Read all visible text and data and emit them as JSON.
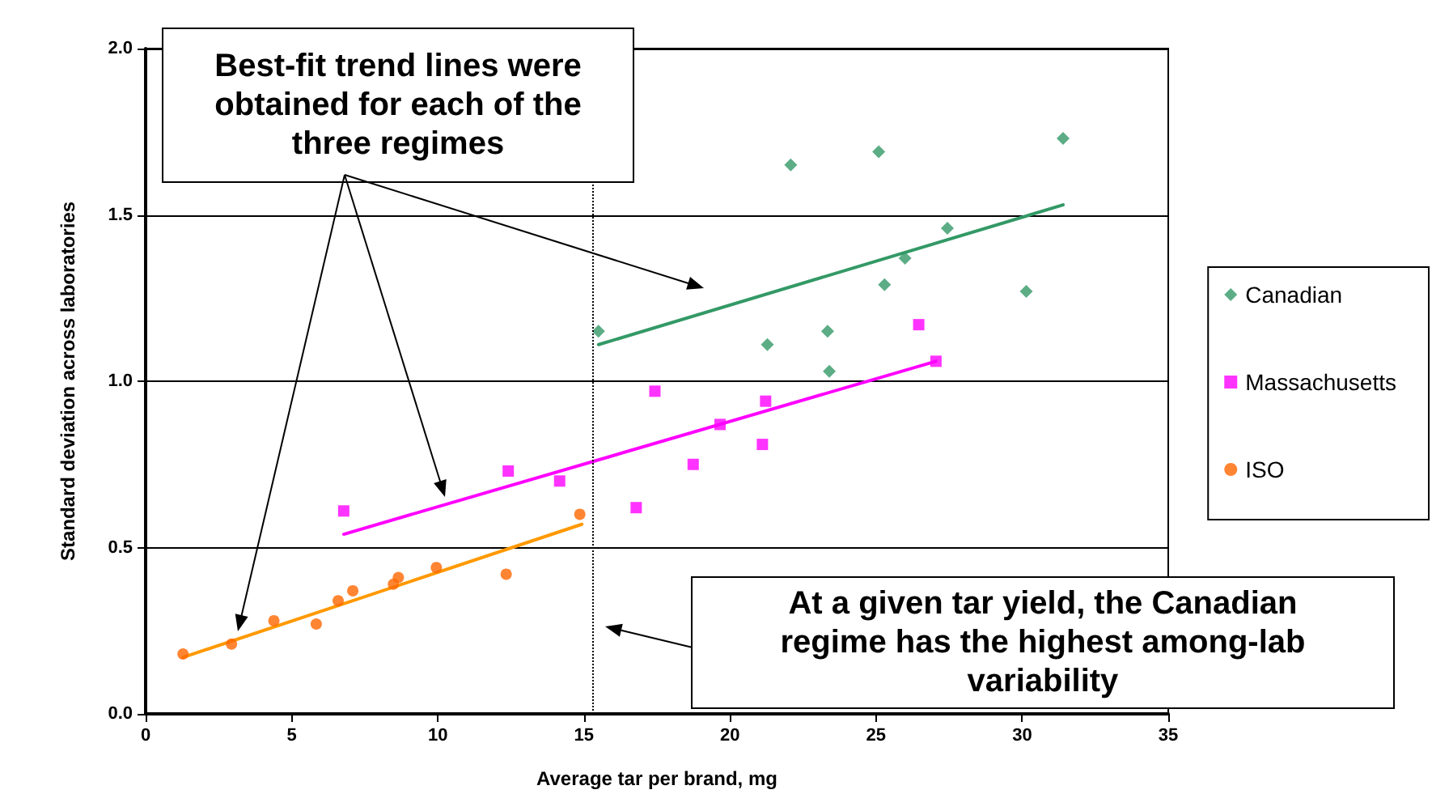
{
  "chart_data": {
    "type": "scatter",
    "xlabel": "Average tar per brand, mg",
    "ylabel": "Standard deviation across laboratories",
    "xlim": [
      0,
      35
    ],
    "xticks": [
      0,
      5,
      10,
      15,
      20,
      25,
      30,
      35
    ],
    "ylim": [
      0,
      2
    ],
    "yticks": [
      {
        "value": 0,
        "label": "0.0"
      },
      0.5,
      {
        "value": 1,
        "label": "1.0"
      },
      1.5,
      {
        "value": 2,
        "label": "2.0"
      }
    ],
    "grid": "y",
    "legend": "right",
    "series": [
      {
        "name": "Canadian",
        "marker": "diamond",
        "color": "#339966",
        "x": [
          15.5,
          21.28,
          22.08,
          23.34,
          23.4,
          25.09,
          25.29,
          25.99,
          27.44,
          30.14,
          31.4
        ],
        "values": [
          1.15,
          1.11,
          1.65,
          1.15,
          1.03,
          1.69,
          1.29,
          1.37,
          1.46,
          1.27,
          1.73
        ]
      },
      {
        "name": "Massachusetts",
        "marker": "square",
        "color": "#ff00ff",
        "x": [
          6.78,
          12.41,
          14.17,
          16.79,
          17.43,
          18.74,
          19.66,
          21.11,
          21.22,
          26.46,
          27.05
        ],
        "values": [
          0.61,
          0.73,
          0.7,
          0.62,
          0.97,
          0.75,
          0.87,
          0.81,
          0.94,
          1.17,
          1.06
        ]
      },
      {
        "name": "ISO",
        "marker": "circle",
        "color": "#ff6600",
        "x": [
          1.28,
          2.94,
          4.39,
          5.84,
          6.59,
          7.09,
          8.48,
          8.65,
          9.95,
          12.34,
          14.86
        ],
        "values": [
          0.18,
          0.21,
          0.28,
          0.27,
          0.34,
          0.37,
          0.39,
          0.41,
          0.44,
          0.42,
          0.6
        ]
      },
      {
        "type": "line",
        "marker": "none",
        "color": "#339966",
        "x": [
          15.5,
          31.4
        ],
        "values": [
          1.11,
          1.53
        ]
      },
      {
        "type": "line",
        "marker": "none",
        "color": "#ff00ff",
        "x": [
          6.78,
          27.05
        ],
        "values": [
          0.54,
          1.06
        ]
      },
      {
        "type": "line",
        "marker": "none",
        "color": "#ff9900",
        "x": [
          1.28,
          14.93
        ],
        "values": [
          0.17,
          0.57
        ]
      }
    ],
    "ref_lines": [
      {
        "axis": "x",
        "value": 15.3,
        "line_style": "dotted",
        "color": "#000000"
      }
    ],
    "annotations": [
      "Best-fit trend lines were obtained for each of the three regimes",
      "At a given tar yield, the Canadian regime has the highest among-lab variability"
    ]
  }
}
